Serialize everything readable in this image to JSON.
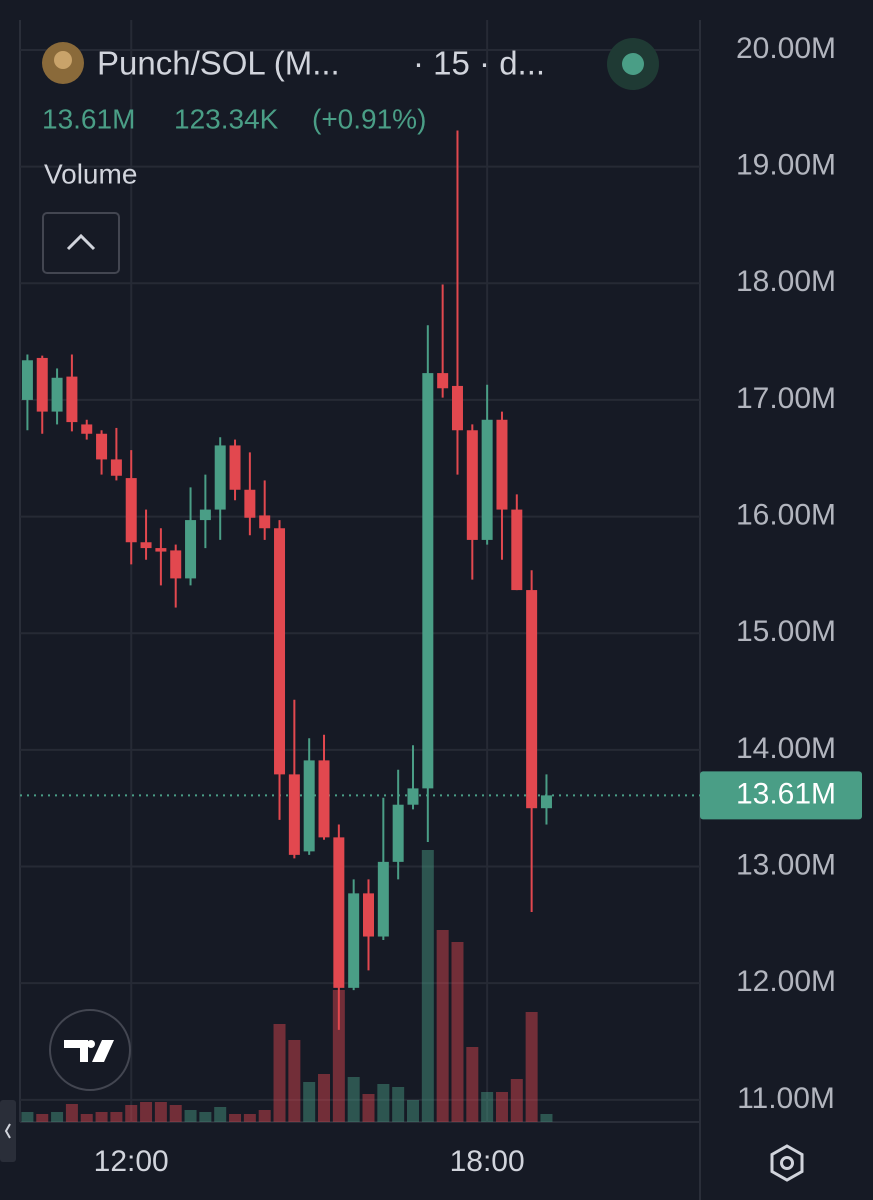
{
  "header": {
    "title": "Punch/SOL (M...",
    "interval": "· 15 · d...",
    "price": "13.61M",
    "change": "123.34K",
    "change_pct": "(+0.91%)",
    "indicator": "Volume"
  },
  "chart_data": {
    "type": "candlestick",
    "categories": [
      null,
      null,
      null,
      null,
      null,
      null,
      null,
      "12:00",
      null,
      null,
      null,
      null,
      null,
      null,
      null,
      null,
      null,
      null,
      null,
      null,
      null,
      null,
      null,
      null,
      null,
      null,
      null,
      null,
      null,
      null,
      null,
      "18:00",
      null,
      null,
      null,
      null
    ],
    "open": [
      17000000,
      17360000,
      16900000,
      17200000,
      16790000,
      16710000,
      16490000,
      16330000,
      15780000,
      15730000,
      15710000,
      15470000,
      15970000,
      16060000,
      16610000,
      16230000,
      16010000,
      15900000,
      13790000,
      13130000,
      13910000,
      13250000,
      11960000,
      12770000,
      12400000,
      13040000,
      13530000,
      13670000,
      17230000,
      17120000,
      16740000,
      15800000,
      16830000,
      16060000,
      15370000,
      13500000
    ],
    "high": [
      17390000,
      17380000,
      17270000,
      17390000,
      16830000,
      16740000,
      16760000,
      16570000,
      16060000,
      15900000,
      15760000,
      16250000,
      16360000,
      16680000,
      16660000,
      16550000,
      16310000,
      15970000,
      14430000,
      14100000,
      14130000,
      13360000,
      12890000,
      12890000,
      13590000,
      13830000,
      14040000,
      17640000,
      17990000,
      19310000,
      16790000,
      17130000,
      16900000,
      16190000,
      15540000,
      13790000
    ],
    "low": [
      16740000,
      16710000,
      16790000,
      16730000,
      16660000,
      16360000,
      16310000,
      15590000,
      15630000,
      15410000,
      15220000,
      15410000,
      15730000,
      15800000,
      16140000,
      15840000,
      15800000,
      13400000,
      13070000,
      13100000,
      13230000,
      11600000,
      11940000,
      12110000,
      12370000,
      12890000,
      13490000,
      13210000,
      17020000,
      16360000,
      15460000,
      15760000,
      15630000,
      15370000,
      12610000,
      13360000
    ],
    "close": [
      17340000,
      16900000,
      17190000,
      16810000,
      16710000,
      16490000,
      16350000,
      15780000,
      15730000,
      15700000,
      15470000,
      15970000,
      16060000,
      16610000,
      16230000,
      15990000,
      15900000,
      13790000,
      13100000,
      13910000,
      13250000,
      11960000,
      12770000,
      12400000,
      13040000,
      13530000,
      13670000,
      17230000,
      17100000,
      16740000,
      15800000,
      16830000,
      16060000,
      15370000,
      13500000,
      13610000
    ],
    "volume": [
      10,
      8,
      10,
      18,
      8,
      10,
      10,
      17,
      20,
      20,
      17,
      12,
      10,
      15,
      8,
      8,
      12,
      98,
      82,
      40,
      48,
      132,
      45,
      28,
      38,
      35,
      22,
      272,
      192,
      180,
      75,
      30,
      30,
      43,
      110,
      8
    ],
    "up_color": "#4a9e86",
    "down_color": "#e2484f",
    "ylim": [
      10810000,
      20257000
    ],
    "yticks": [
      {
        "value": 11000000,
        "label": "11.00M"
      },
      {
        "value": 12000000,
        "label": "12.00M"
      },
      {
        "value": 13000000,
        "label": "13.00M"
      },
      {
        "value": 14000000,
        "label": "14.00M"
      },
      {
        "value": 15000000,
        "label": "15.00M"
      },
      {
        "value": 16000000,
        "label": "16.00M"
      },
      {
        "value": 17000000,
        "label": "17.00M"
      },
      {
        "value": 18000000,
        "label": "18.00M"
      },
      {
        "value": 19000000,
        "label": "19.00M"
      },
      {
        "value": 20000000,
        "label": "20.00M"
      }
    ],
    "last_price": {
      "value": 13610000,
      "label": "13.61M"
    },
    "grid": true
  }
}
